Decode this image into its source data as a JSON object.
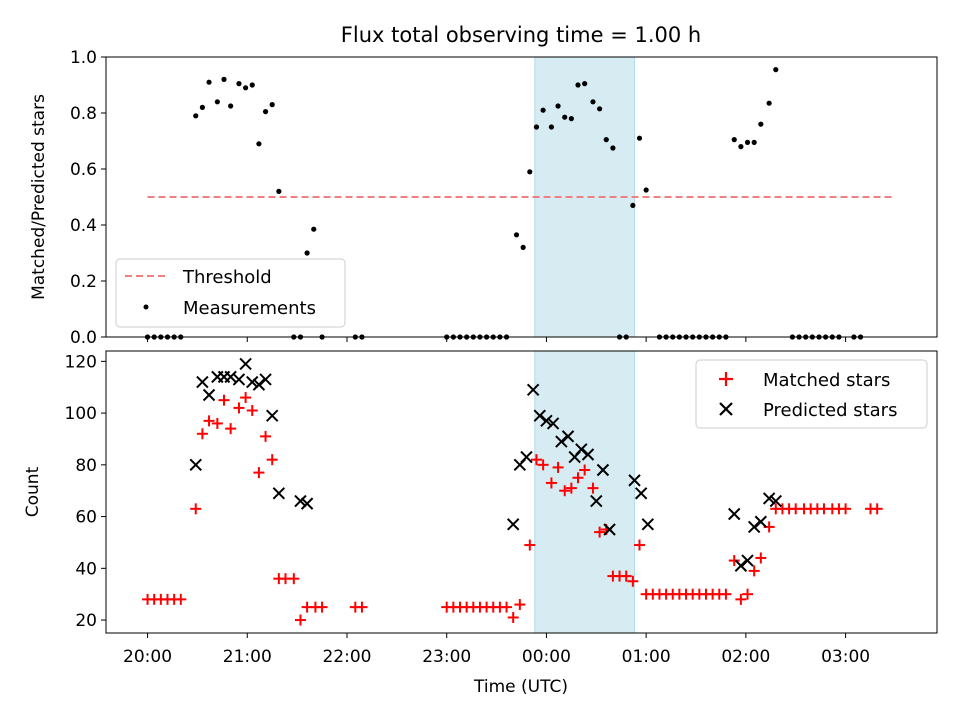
{
  "chart_data": [
    {
      "type": "scatter",
      "title": "Flux total observing time = 1.00 h",
      "xlabel": "",
      "ylabel": "Matched/Predicted stars",
      "xlim": [
        "19:35",
        "03:55"
      ],
      "ylim": [
        0,
        1.0
      ],
      "yticks": [
        "0.0",
        "0.2",
        "0.4",
        "0.6",
        "0.8",
        "1.0"
      ],
      "grid": false,
      "legend_position": "lower-left",
      "highlight_span": [
        "23:53",
        "00:53"
      ],
      "threshold": {
        "name": "Threshold",
        "value": 0.5,
        "x_start": "20:00",
        "x_end": "03:30",
        "color": "#f08080"
      },
      "series": [
        {
          "name": "Measurements",
          "color": "#000000",
          "points": [
            [
              "20:00",
              0
            ],
            [
              "20:04",
              0
            ],
            [
              "20:08",
              0
            ],
            [
              "20:12",
              0
            ],
            [
              "20:16",
              0
            ],
            [
              "20:20",
              0
            ],
            [
              "20:29",
              0.79
            ],
            [
              "20:33",
              0.82
            ],
            [
              "20:37",
              0.91
            ],
            [
              "20:42",
              0.84
            ],
            [
              "20:46",
              0.92
            ],
            [
              "20:50",
              0.825
            ],
            [
              "20:55",
              0.905
            ],
            [
              "20:59",
              0.89
            ],
            [
              "21:03",
              0.9
            ],
            [
              "21:07",
              0.69
            ],
            [
              "21:11",
              0.805
            ],
            [
              "21:15",
              0.83
            ],
            [
              "21:19",
              0.52
            ],
            [
              "21:28",
              0
            ],
            [
              "21:32",
              0
            ],
            [
              "21:36",
              0.3
            ],
            [
              "21:40",
              0.385
            ],
            [
              "21:45",
              0
            ],
            [
              "22:05",
              0
            ],
            [
              "22:09",
              0
            ],
            [
              "23:00",
              0
            ],
            [
              "23:04",
              0
            ],
            [
              "23:08",
              0
            ],
            [
              "23:12",
              0
            ],
            [
              "23:16",
              0
            ],
            [
              "23:20",
              0
            ],
            [
              "23:24",
              0
            ],
            [
              "23:28",
              0
            ],
            [
              "23:32",
              0
            ],
            [
              "23:36",
              0
            ],
            [
              "23:42",
              0.365
            ],
            [
              "23:46",
              0.32
            ],
            [
              "23:50",
              0.59
            ],
            [
              "23:54",
              0.75
            ],
            [
              "23:58",
              0.81
            ],
            [
              "00:03",
              0.75
            ],
            [
              "00:07",
              0.825
            ],
            [
              "00:11",
              0.785
            ],
            [
              "00:15",
              0.78
            ],
            [
              "00:19",
              0.9
            ],
            [
              "00:23",
              0.905
            ],
            [
              "00:28",
              0.84
            ],
            [
              "00:32",
              0.815
            ],
            [
              "00:36",
              0.705
            ],
            [
              "00:40",
              0.675
            ],
            [
              "00:44",
              0
            ],
            [
              "00:48",
              0
            ],
            [
              "00:52",
              0.47
            ],
            [
              "00:56",
              0.71
            ],
            [
              "01:00",
              0.525
            ],
            [
              "01:08",
              0
            ],
            [
              "01:12",
              0
            ],
            [
              "01:16",
              0
            ],
            [
              "01:20",
              0
            ],
            [
              "01:24",
              0
            ],
            [
              "01:28",
              0
            ],
            [
              "01:32",
              0
            ],
            [
              "01:36",
              0
            ],
            [
              "01:40",
              0
            ],
            [
              "01:44",
              0
            ],
            [
              "01:48",
              0
            ],
            [
              "01:53",
              0.705
            ],
            [
              "01:57",
              0.68
            ],
            [
              "02:01",
              0.695
            ],
            [
              "02:05",
              0.695
            ],
            [
              "02:09",
              0.76
            ],
            [
              "02:14",
              0.835
            ],
            [
              "02:18",
              0.955
            ],
            [
              "02:28",
              0
            ],
            [
              "02:32",
              0
            ],
            [
              "02:36",
              0
            ],
            [
              "02:40",
              0
            ],
            [
              "02:44",
              0
            ],
            [
              "02:48",
              0
            ],
            [
              "02:52",
              0
            ],
            [
              "02:56",
              0
            ],
            [
              "03:05",
              0
            ],
            [
              "03:09",
              0
            ]
          ]
        }
      ]
    },
    {
      "type": "scatter",
      "title": "",
      "xlabel": "Time (UTC)",
      "ylabel": "Count",
      "xlim": [
        "19:35",
        "03:55"
      ],
      "ylim": [
        15,
        124
      ],
      "yticks": [
        "20",
        "40",
        "60",
        "80",
        "100",
        "120"
      ],
      "xticks": [
        "20:00",
        "21:00",
        "22:00",
        "23:00",
        "00:00",
        "01:00",
        "02:00",
        "03:00"
      ],
      "grid": false,
      "legend_position": "top-right",
      "highlight_span": [
        "23:53",
        "00:53"
      ],
      "series": [
        {
          "name": "Matched stars",
          "marker": "+",
          "color": "#ff0000",
          "points": [
            [
              "20:00",
              28
            ],
            [
              "20:04",
              28
            ],
            [
              "20:08",
              28
            ],
            [
              "20:12",
              28
            ],
            [
              "20:16",
              28
            ],
            [
              "20:20",
              28
            ],
            [
              "20:29",
              63
            ],
            [
              "20:33",
              92
            ],
            [
              "20:37",
              97
            ],
            [
              "20:42",
              96
            ],
            [
              "20:46",
              105
            ],
            [
              "20:50",
              94
            ],
            [
              "20:55",
              102
            ],
            [
              "20:59",
              106
            ],
            [
              "21:03",
              101
            ],
            [
              "21:07",
              77
            ],
            [
              "21:11",
              91
            ],
            [
              "21:15",
              82
            ],
            [
              "21:19",
              36
            ],
            [
              "21:23",
              36
            ],
            [
              "21:28",
              36
            ],
            [
              "21:32",
              20
            ],
            [
              "21:36",
              25
            ],
            [
              "21:41",
              25
            ],
            [
              "21:45",
              25
            ],
            [
              "22:05",
              25
            ],
            [
              "22:09",
              25
            ],
            [
              "23:00",
              25
            ],
            [
              "23:04",
              25
            ],
            [
              "23:08",
              25
            ],
            [
              "23:12",
              25
            ],
            [
              "23:16",
              25
            ],
            [
              "23:20",
              25
            ],
            [
              "23:24",
              25
            ],
            [
              "23:28",
              25
            ],
            [
              "23:32",
              25
            ],
            [
              "23:36",
              25
            ],
            [
              "23:40",
              21
            ],
            [
              "23:44",
              26
            ],
            [
              "23:50",
              49
            ],
            [
              "23:54",
              82
            ],
            [
              "23:58",
              80
            ],
            [
              "00:03",
              73
            ],
            [
              "00:07",
              79
            ],
            [
              "00:11",
              70
            ],
            [
              "00:15",
              71
            ],
            [
              "00:19",
              75
            ],
            [
              "00:23",
              78
            ],
            [
              "00:28",
              71
            ],
            [
              "00:32",
              54
            ],
            [
              "00:36",
              55
            ],
            [
              "00:40",
              37
            ],
            [
              "00:44",
              37
            ],
            [
              "00:48",
              37
            ],
            [
              "00:52",
              35
            ],
            [
              "00:56",
              49
            ],
            [
              "01:00",
              30
            ],
            [
              "01:04",
              30
            ],
            [
              "01:08",
              30
            ],
            [
              "01:12",
              30
            ],
            [
              "01:16",
              30
            ],
            [
              "01:20",
              30
            ],
            [
              "01:24",
              30
            ],
            [
              "01:28",
              30
            ],
            [
              "01:32",
              30
            ],
            [
              "01:36",
              30
            ],
            [
              "01:40",
              30
            ],
            [
              "01:44",
              30
            ],
            [
              "01:48",
              30
            ],
            [
              "01:53",
              43
            ],
            [
              "01:57",
              28
            ],
            [
              "02:01",
              30
            ],
            [
              "02:05",
              39
            ],
            [
              "02:09",
              44
            ],
            [
              "02:14",
              56
            ],
            [
              "02:18",
              63
            ],
            [
              "02:22",
              63
            ],
            [
              "02:26",
              63
            ],
            [
              "02:30",
              63
            ],
            [
              "02:35",
              63
            ],
            [
              "02:39",
              63
            ],
            [
              "02:43",
              63
            ],
            [
              "02:47",
              63
            ],
            [
              "02:52",
              63
            ],
            [
              "02:56",
              63
            ],
            [
              "03:00",
              63
            ],
            [
              "03:15",
              63
            ],
            [
              "03:19",
              63
            ]
          ]
        },
        {
          "name": "Predicted stars",
          "marker": "x",
          "color": "#000000",
          "points": [
            [
              "20:29",
              80
            ],
            [
              "20:33",
              112
            ],
            [
              "20:37",
              107
            ],
            [
              "20:42",
              114
            ],
            [
              "20:46",
              114
            ],
            [
              "20:50",
              114
            ],
            [
              "20:55",
              113
            ],
            [
              "20:59",
              119
            ],
            [
              "21:03",
              112
            ],
            [
              "21:07",
              111
            ],
            [
              "21:11",
              113
            ],
            [
              "21:15",
              99
            ],
            [
              "21:19",
              69
            ],
            [
              "21:32",
              66
            ],
            [
              "21:36",
              65
            ],
            [
              "23:40",
              57
            ],
            [
              "23:44",
              80
            ],
            [
              "23:48",
              83
            ],
            [
              "23:52",
              109
            ],
            [
              "23:56",
              99
            ],
            [
              "00:00",
              97
            ],
            [
              "00:04",
              96
            ],
            [
              "00:09",
              89
            ],
            [
              "00:13",
              91
            ],
            [
              "00:17",
              83
            ],
            [
              "00:21",
              86
            ],
            [
              "00:25",
              84
            ],
            [
              "00:30",
              66
            ],
            [
              "00:34",
              78
            ],
            [
              "00:38",
              55
            ],
            [
              "00:53",
              74
            ],
            [
              "00:57",
              69
            ],
            [
              "01:01",
              57
            ],
            [
              "01:53",
              61
            ],
            [
              "01:57",
              41
            ],
            [
              "02:01",
              43
            ],
            [
              "02:05",
              56
            ],
            [
              "02:09",
              58
            ],
            [
              "02:14",
              67
            ],
            [
              "02:18",
              66
            ]
          ]
        }
      ]
    }
  ]
}
